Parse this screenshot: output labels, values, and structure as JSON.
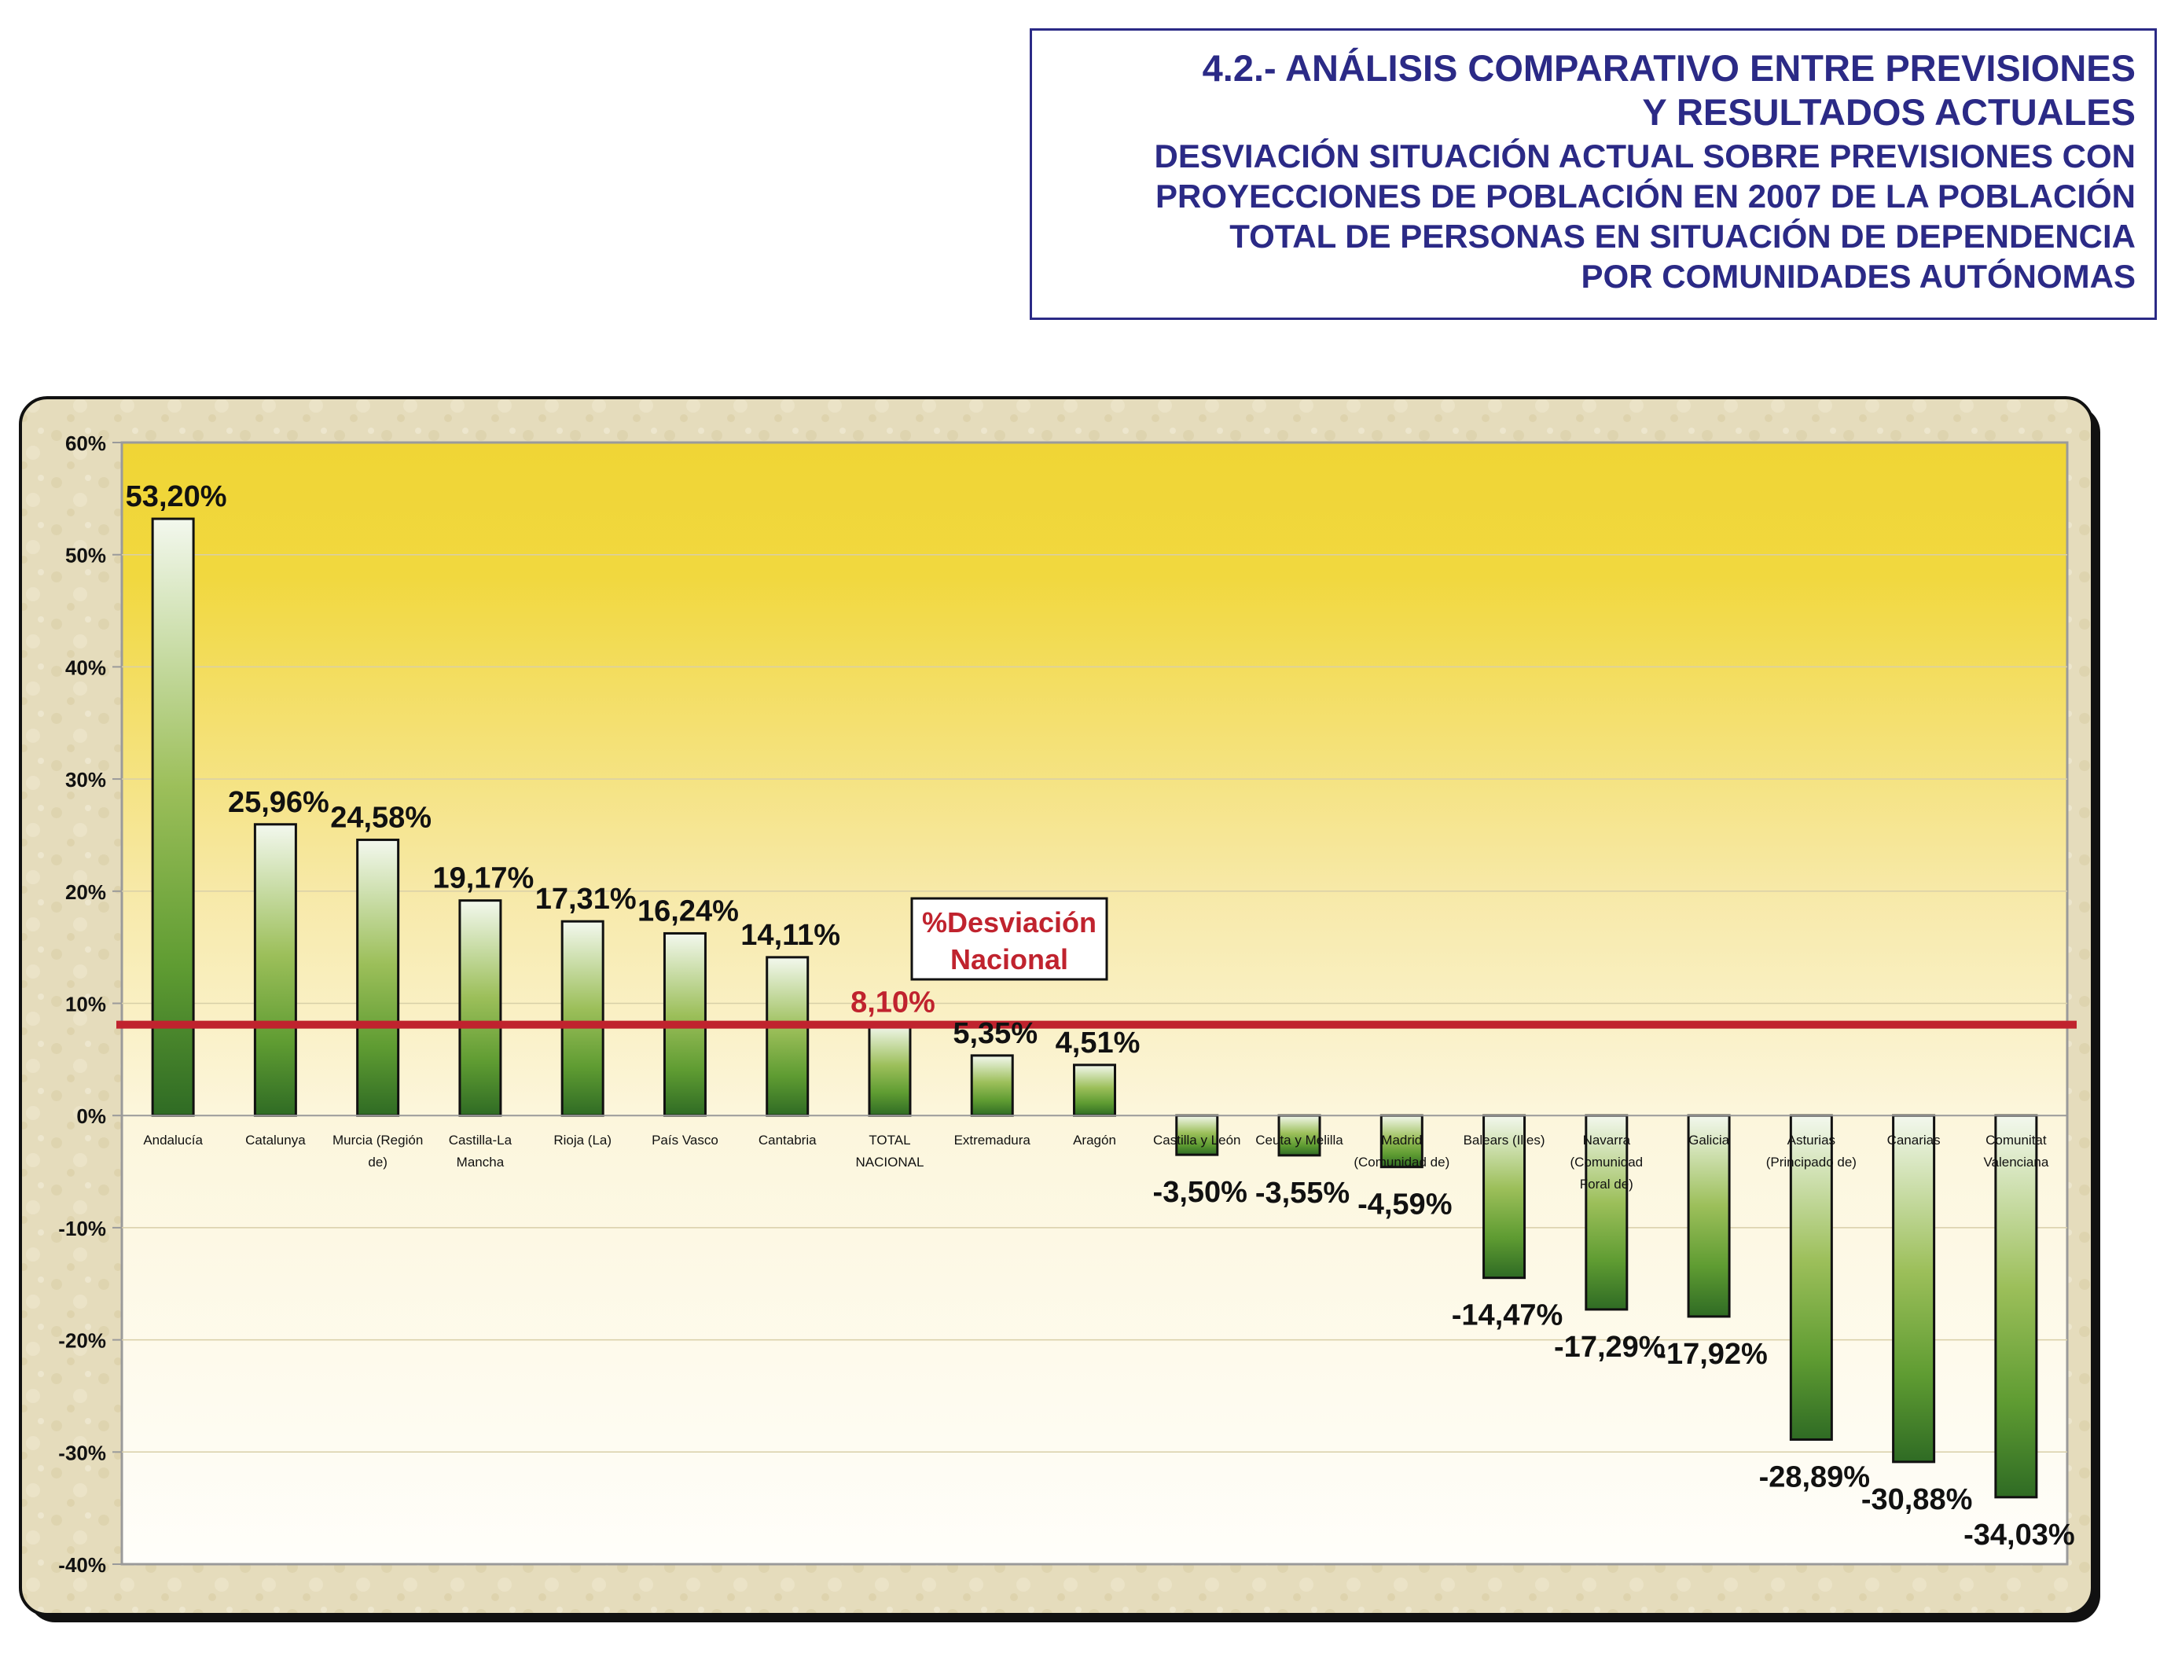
{
  "title": {
    "line1": "4.2.- ANÁLISIS COMPARATIVO ENTRE PREVISIONES",
    "line2": "Y RESULTADOS ACTUALES",
    "subtitle_lines": [
      "DESVIACIÓN SITUACIÓN ACTUAL SOBRE PREVISIONES CON",
      "PROYECCIONES DE POBLACIÓN EN 2007 DE LA POBLACIÓN",
      "TOTAL DE PERSONAS EN SITUACIÓN DE DEPENDENCIA",
      "POR COMUNIDADES AUTÓNOMAS"
    ]
  },
  "colors": {
    "title_text": "#2b2a86",
    "reference_line": "#c0232e",
    "bar_dark": "#2f6b24",
    "bar_light": "#f3f8ee",
    "plot_top": "#f0d535",
    "plot_bottom": "#fffefa",
    "frame_background": "#e5dcbc"
  },
  "chart_data": {
    "type": "bar",
    "categories": [
      "Andalucía",
      "Catalunya",
      "Murcia (Región de)",
      "Castilla-La Mancha",
      "Rioja (La)",
      "País Vasco",
      "Cantabria",
      "TOTAL NACIONAL",
      "Extremadura",
      "Aragón",
      "Castilla y León",
      "Ceuta y Melilla",
      "Madrid (Comunidad de)",
      "Balears (Illes)",
      "Navarra (Comunidad Foral de)",
      "Galicia",
      "Asturias (Principado de)",
      "Canarias",
      "Comunitat Valenciana"
    ],
    "category_label_lines": [
      [
        "Andalucía"
      ],
      [
        "Catalunya"
      ],
      [
        "Murcia (Región",
        "de)"
      ],
      [
        "Castilla-La",
        "Mancha"
      ],
      [
        "Rioja (La)"
      ],
      [
        "País Vasco"
      ],
      [
        "Cantabria"
      ],
      [
        "TOTAL",
        "NACIONAL"
      ],
      [
        "Extremadura"
      ],
      [
        "Aragón"
      ],
      [
        "Castilla y León"
      ],
      [
        "Ceuta y Melilla"
      ],
      [
        "Madrid",
        "(Comunidad de)"
      ],
      [
        "Balears (Illes)"
      ],
      [
        "Navarra",
        "(Comunidad",
        "Foral de)"
      ],
      [
        "Galicia"
      ],
      [
        "Asturias",
        "(Principado de)"
      ],
      [
        "Canarias"
      ],
      [
        "Comunitat",
        "Valenciana"
      ]
    ],
    "values": [
      53.2,
      25.96,
      24.58,
      19.17,
      17.31,
      16.24,
      14.11,
      8.1,
      5.35,
      4.51,
      -3.5,
      -3.55,
      -4.59,
      -14.47,
      -17.29,
      -17.92,
      -28.89,
      -30.88,
      -34.03
    ],
    "value_labels": [
      "53,20%",
      "25,96%",
      "24,58%",
      "19,17%",
      "17,31%",
      "16,24%",
      "14,11%",
      "8,10%",
      "5,35%",
      "4,51%",
      "-3,50%",
      "-3,55%",
      "-4,59%",
      "-14,47%",
      "-17,29%",
      "-17,92%",
      "-28,89%",
      "-30,88%",
      "-34,03%"
    ],
    "highlight_index": 7,
    "reference_line": {
      "value": 8.1,
      "label_lines": [
        "%Desviación",
        "Nacional"
      ]
    },
    "ylim": [
      -40,
      60
    ],
    "y_ticks": [
      60,
      50,
      40,
      30,
      20,
      10,
      0,
      -10,
      -20,
      -30,
      -40
    ],
    "y_tick_labels": [
      "60%",
      "50%",
      "40%",
      "30%",
      "20%",
      "10%",
      "0%",
      "-10%",
      "-20%",
      "-30%",
      "-40%"
    ],
    "xlabel": "",
    "ylabel": "",
    "grid": true
  }
}
